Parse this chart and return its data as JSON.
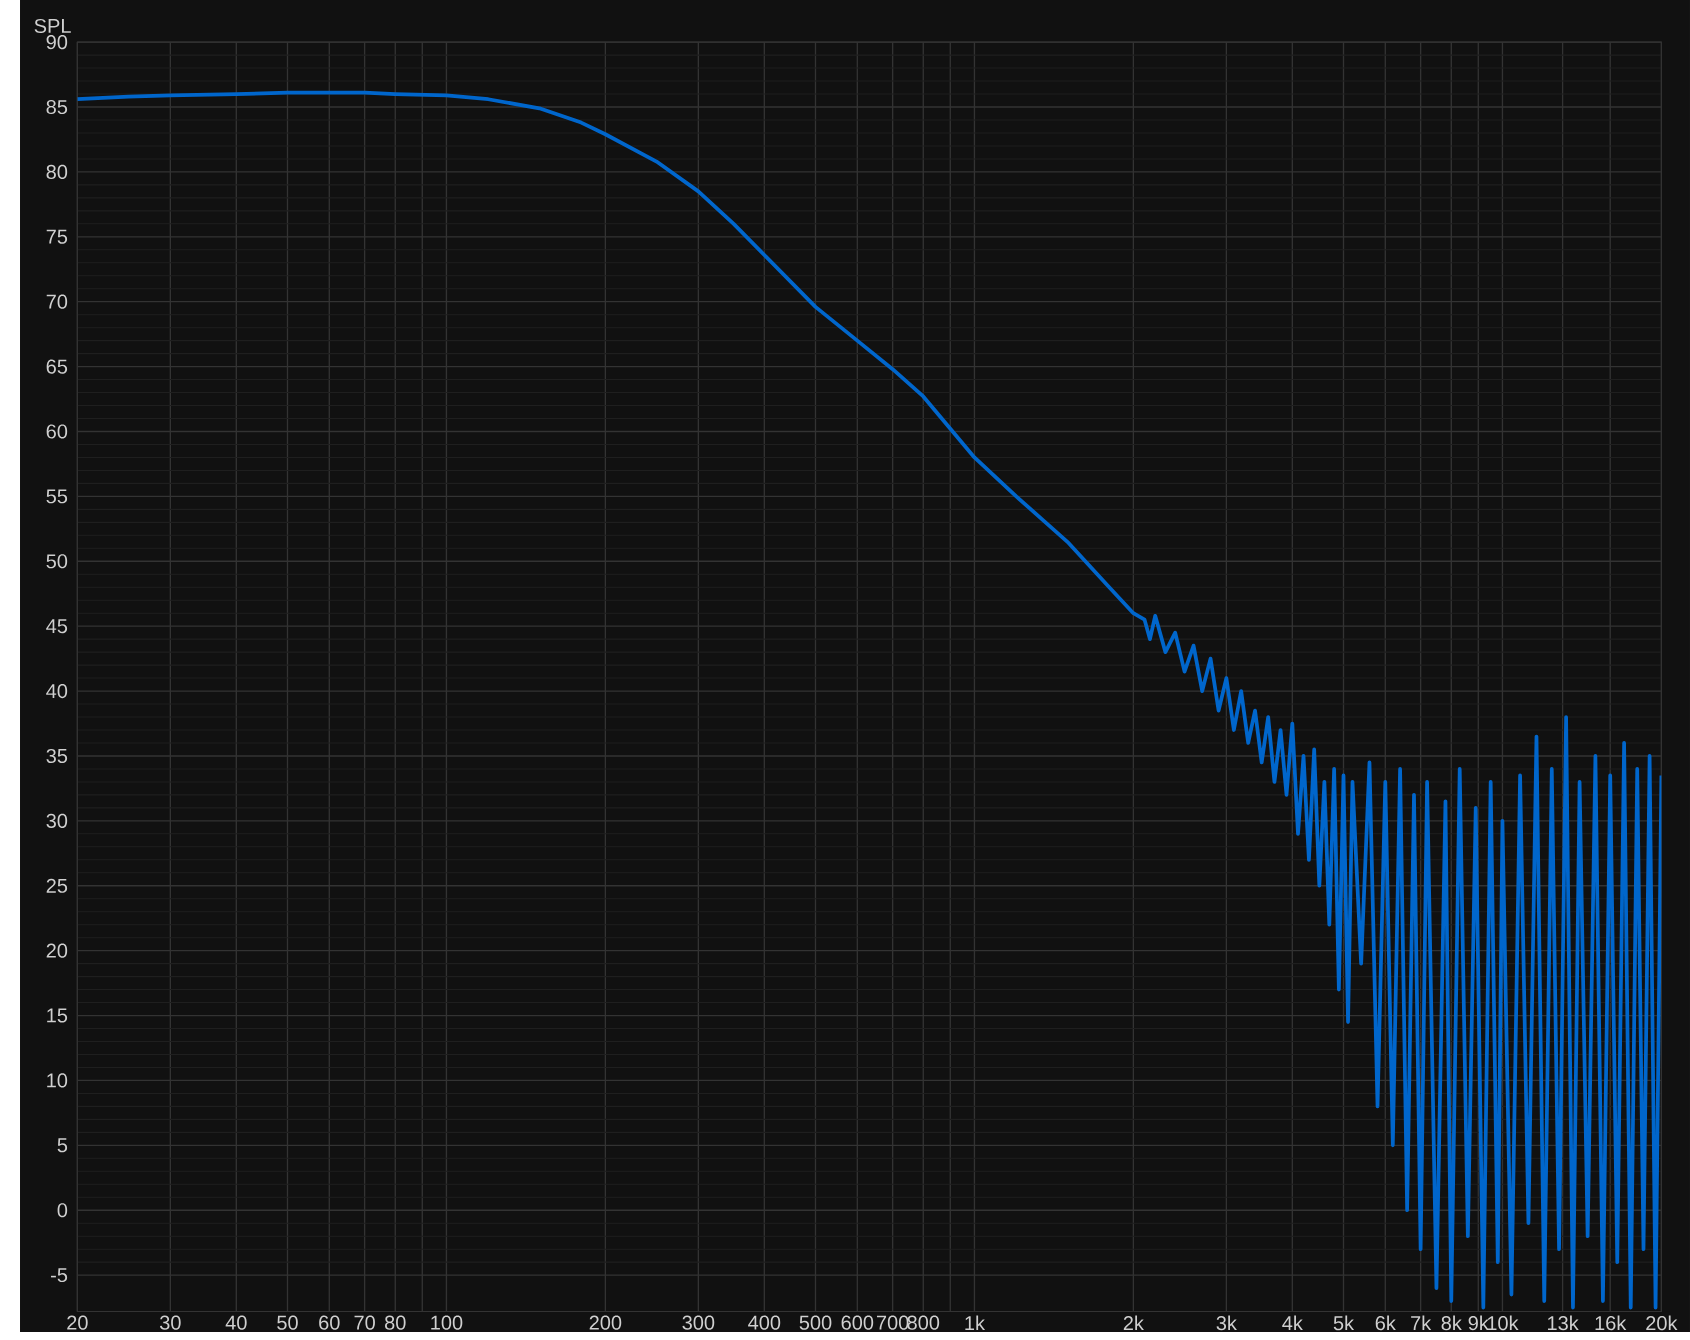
{
  "chart_data": {
    "type": "line",
    "ylabel": "SPL",
    "log": "x",
    "grid": true,
    "marker": "none",
    "line_style": "solid",
    "xlim": [
      20,
      20000
    ],
    "ylim": [
      -7.8,
      90
    ],
    "xticks": [
      20,
      30,
      40,
      50,
      60,
      70,
      80,
      {
        "value": 90,
        "label": null
      },
      100,
      200,
      300,
      400,
      500,
      600,
      700,
      800,
      {
        "value": 900,
        "label": null
      },
      {
        "value": 1000,
        "label": "1k"
      },
      {
        "value": 2000,
        "label": "2k"
      },
      {
        "value": 3000,
        "label": "3k"
      },
      {
        "value": 4000,
        "label": "4k"
      },
      {
        "value": 5000,
        "label": "5k"
      },
      {
        "value": 6000,
        "label": "6k"
      },
      {
        "value": 7000,
        "label": "7k"
      },
      {
        "value": 8000,
        "label": "8k"
      },
      {
        "value": 9000,
        "label": "9k"
      },
      {
        "value": 10000,
        "label": "10k"
      },
      {
        "value": 13000,
        "label": "13k"
      },
      {
        "value": 16000,
        "label": "16k"
      },
      {
        "value": 20000,
        "label": "20k"
      }
    ],
    "yticks": [
      -5,
      0,
      5,
      10,
      15,
      20,
      25,
      30,
      35,
      40,
      45,
      50,
      55,
      60,
      65,
      70,
      75,
      80,
      85,
      90
    ],
    "series": [
      {
        "color": "#0066cc",
        "x": [
          20,
          25,
          30,
          40,
          50,
          60,
          70,
          80,
          100,
          120,
          150,
          180,
          200,
          250,
          300,
          350,
          400,
          500,
          600,
          700,
          800,
          1000,
          1200,
          1500,
          1800,
          2000,
          2100,
          2150,
          2200,
          2300,
          2400,
          2500,
          2600,
          2700,
          2800,
          2900,
          3000,
          3100,
          3200,
          3300,
          3400,
          3500,
          3600,
          3700,
          3800,
          3900,
          4000,
          4100,
          4200,
          4300,
          4400,
          4500,
          4600,
          4700,
          4800,
          4900,
          5000,
          5100,
          5200,
          5400,
          5600,
          5800,
          6000,
          6200,
          6400,
          6600,
          6800,
          7000,
          7200,
          7500,
          7800,
          8000,
          8300,
          8600,
          8900,
          9200,
          9500,
          9800,
          10000,
          10400,
          10800,
          11200,
          11600,
          12000,
          12400,
          12800,
          13200,
          13600,
          14000,
          14500,
          15000,
          15500,
          16000,
          16500,
          17000,
          17500,
          18000,
          18500,
          19000,
          19500,
          20000
        ],
        "values": [
          85.6,
          85.8,
          85.9,
          86.0,
          86.1,
          86.1,
          86.1,
          86.0,
          85.9,
          85.6,
          84.9,
          83.8,
          82.9,
          80.8,
          78.5,
          76.0,
          73.6,
          69.6,
          67.0,
          64.8,
          62.7,
          58.0,
          55.0,
          51.5,
          48.0,
          46.0,
          45.5,
          44.0,
          45.8,
          43.0,
          44.5,
          41.5,
          43.5,
          40.0,
          42.5,
          38.5,
          41.0,
          37.0,
          40.0,
          36.0,
          38.5,
          34.5,
          38.0,
          33.0,
          37.0,
          32.0,
          37.5,
          29.0,
          35.0,
          27.0,
          35.5,
          25.0,
          33.0,
          22.0,
          34.0,
          17.0,
          33.5,
          14.5,
          33.0,
          19.0,
          34.5,
          8.0,
          33.0,
          5.0,
          34.0,
          0.0,
          32.0,
          -3.0,
          33.0,
          -6.0,
          31.5,
          -7.0,
          34.0,
          -2.0,
          31.0,
          -7.5,
          33.0,
          -4.0,
          30.0,
          -6.5,
          33.5,
          -1.0,
          36.5,
          -7.0,
          34.0,
          -3.0,
          38.0,
          -7.5,
          33.0,
          -2.0,
          35.0,
          -7.0,
          33.5,
          -4.0,
          36.0,
          -7.5,
          34.0,
          -3.0,
          35.0,
          -7.5,
          33.5
        ]
      }
    ]
  }
}
